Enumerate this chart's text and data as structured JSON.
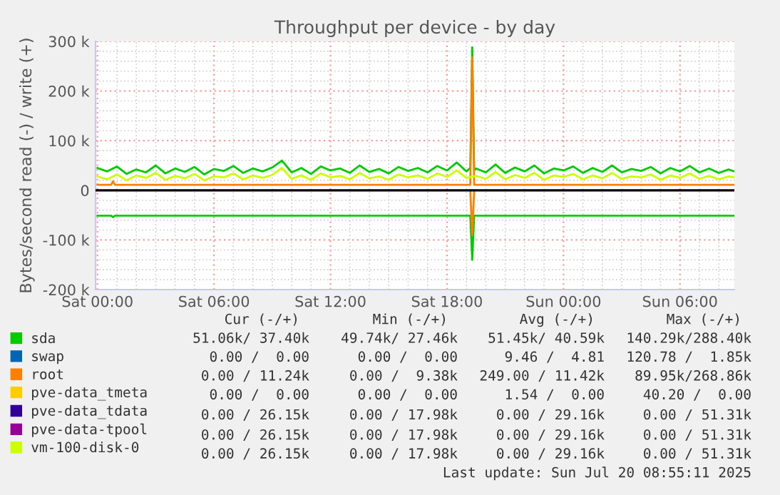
{
  "chart_data": {
    "type": "line",
    "title": "Throughput per device - by day",
    "ylabel": "Bytes/second read (-) / write (+)",
    "xlim": [
      "2025-07-18T23:54",
      "2025-07-20T08:48"
    ],
    "ylim": [
      -200000,
      300000
    ],
    "xticks": [
      {
        "value": "2025-07-19T00:00",
        "label": "Sat 00:00"
      },
      {
        "value": "2025-07-19T06:00",
        "label": "Sat 06:00"
      },
      {
        "value": "2025-07-19T12:00",
        "label": "Sat 12:00"
      },
      {
        "value": "2025-07-19T18:00",
        "label": "Sat 18:00"
      },
      {
        "value": "2025-07-20T00:00",
        "label": "Sun 00:00"
      },
      {
        "value": "2025-07-20T06:00",
        "label": "Sun 06:00"
      }
    ],
    "yticks": [
      {
        "value": -200000,
        "label": "-200 k"
      },
      {
        "value": -100000,
        "label": "-100 k"
      },
      0,
      {
        "value": 100000,
        "label": "100 k"
      },
      {
        "value": 200000,
        "label": "200 k"
      },
      {
        "value": 300000,
        "label": "300 k"
      }
    ],
    "grid": true,
    "legend": "bottom",
    "marker": "none",
    "line_style": "solid",
    "ref_lines": [
      {
        "axis": "y",
        "value": 0,
        "color": "#000000"
      }
    ],
    "series": [
      {
        "name": "sda",
        "color": "#00cc00",
        "x": [
          "2025-07-19T00:00",
          "2025-07-19T00:30",
          "2025-07-19T01:00",
          "2025-07-19T01:30",
          "2025-07-19T02:00",
          "2025-07-19T02:30",
          "2025-07-19T03:00",
          "2025-07-19T03:30",
          "2025-07-19T04:00",
          "2025-07-19T04:30",
          "2025-07-19T05:00",
          "2025-07-19T05:30",
          "2025-07-19T06:00",
          "2025-07-19T06:30",
          "2025-07-19T07:00",
          "2025-07-19T07:30",
          "2025-07-19T08:00",
          "2025-07-19T08:30",
          "2025-07-19T09:00",
          "2025-07-19T09:30",
          "2025-07-19T10:00",
          "2025-07-19T10:30",
          "2025-07-19T11:00",
          "2025-07-19T11:30",
          "2025-07-19T12:00",
          "2025-07-19T12:30",
          "2025-07-19T13:00",
          "2025-07-19T13:30",
          "2025-07-19T14:00",
          "2025-07-19T14:30",
          "2025-07-19T15:00",
          "2025-07-19T15:30",
          "2025-07-19T16:00",
          "2025-07-19T16:30",
          "2025-07-19T17:00",
          "2025-07-19T17:30",
          "2025-07-19T18:00",
          "2025-07-19T18:30",
          "2025-07-19T19:00",
          "2025-07-19T19:12",
          "2025-07-19T19:18",
          "2025-07-19T19:24",
          "2025-07-19T19:30",
          "2025-07-19T20:00",
          "2025-07-19T20:30",
          "2025-07-19T21:00",
          "2025-07-19T21:30",
          "2025-07-19T22:00",
          "2025-07-19T22:30",
          "2025-07-19T23:00",
          "2025-07-19T23:30",
          "2025-07-20T00:00",
          "2025-07-20T00:30",
          "2025-07-20T01:00",
          "2025-07-20T01:30",
          "2025-07-20T02:00",
          "2025-07-20T02:30",
          "2025-07-20T03:00",
          "2025-07-20T03:30",
          "2025-07-20T04:00",
          "2025-07-20T04:30",
          "2025-07-20T05:00",
          "2025-07-20T05:30",
          "2025-07-20T06:00",
          "2025-07-20T06:30",
          "2025-07-20T07:00",
          "2025-07-20T07:30",
          "2025-07-20T08:00",
          "2025-07-20T08:30",
          "2025-07-20T08:48"
        ],
        "values": [
          45000,
          38000,
          48000,
          33000,
          42000,
          36000,
          50000,
          34000,
          44000,
          37000,
          47000,
          32000,
          43000,
          39000,
          49000,
          35000,
          44000,
          38000,
          46000,
          60000,
          36000,
          45000,
          33000,
          48000,
          40000,
          44000,
          35000,
          50000,
          37000,
          43000,
          34000,
          47000,
          39000,
          45000,
          36000,
          49000,
          40000,
          56000,
          38000,
          45000,
          288000,
          40000,
          44000,
          36000,
          52000,
          35000,
          46000,
          38000,
          50000,
          34000,
          44000,
          40000,
          48000,
          35000,
          45000,
          37000,
          50000,
          36000,
          43000,
          39000,
          47000,
          34000,
          45000,
          38000,
          49000,
          36000,
          44000,
          35000,
          42000,
          38000
        ]
      },
      {
        "name": "swap",
        "color": "#0066b3"
      },
      {
        "name": "root",
        "color": "#ff8000",
        "x": [
          "2025-07-19T00:00",
          "2025-07-19T00:42",
          "2025-07-19T00:48",
          "2025-07-19T00:54",
          "2025-07-19T19:12",
          "2025-07-19T19:18",
          "2025-07-19T19:24",
          "2025-07-20T08:48"
        ],
        "values": [
          11000,
          11000,
          18000,
          11000,
          11000,
          268000,
          11000,
          11000
        ]
      },
      {
        "name": "pve-data_tmeta",
        "color": "#ffcc00"
      },
      {
        "name": "pve-data_tdata",
        "color": "#330099"
      },
      {
        "name": "pve-data-tpool",
        "color": "#990099"
      },
      {
        "name": "vm-100-disk-0",
        "color": "#ccff00",
        "x": [
          "2025-07-19T00:00",
          "2025-07-19T00:30",
          "2025-07-19T01:00",
          "2025-07-19T01:30",
          "2025-07-19T02:00",
          "2025-07-19T02:30",
          "2025-07-19T03:00",
          "2025-07-19T03:30",
          "2025-07-19T04:00",
          "2025-07-19T04:30",
          "2025-07-19T05:00",
          "2025-07-19T05:30",
          "2025-07-19T06:00",
          "2025-07-19T06:30",
          "2025-07-19T07:00",
          "2025-07-19T07:30",
          "2025-07-19T08:00",
          "2025-07-19T08:30",
          "2025-07-19T09:00",
          "2025-07-19T09:30",
          "2025-07-19T10:00",
          "2025-07-19T10:30",
          "2025-07-19T11:00",
          "2025-07-19T11:30",
          "2025-07-19T12:00",
          "2025-07-19T12:30",
          "2025-07-19T13:00",
          "2025-07-19T13:30",
          "2025-07-19T14:00",
          "2025-07-19T14:30",
          "2025-07-19T15:00",
          "2025-07-19T15:30",
          "2025-07-19T16:00",
          "2025-07-19T16:30",
          "2025-07-19T17:00",
          "2025-07-19T17:30",
          "2025-07-19T18:00",
          "2025-07-19T18:30",
          "2025-07-19T19:00",
          "2025-07-19T19:30",
          "2025-07-19T20:00",
          "2025-07-19T20:30",
          "2025-07-19T21:00",
          "2025-07-19T21:30",
          "2025-07-19T22:00",
          "2025-07-19T22:30",
          "2025-07-19T23:00",
          "2025-07-19T23:30",
          "2025-07-20T00:00",
          "2025-07-20T00:30",
          "2025-07-20T01:00",
          "2025-07-20T01:30",
          "2025-07-20T02:00",
          "2025-07-20T02:30",
          "2025-07-20T03:00",
          "2025-07-20T03:30",
          "2025-07-20T04:00",
          "2025-07-20T04:30",
          "2025-07-20T05:00",
          "2025-07-20T05:30",
          "2025-07-20T06:00",
          "2025-07-20T06:30",
          "2025-07-20T07:00",
          "2025-07-20T07:30",
          "2025-07-20T08:00",
          "2025-07-20T08:30",
          "2025-07-20T08:48"
        ],
        "values": [
          28000,
          22000,
          32000,
          20000,
          30000,
          25000,
          35000,
          21000,
          29000,
          24000,
          33000,
          20000,
          28000,
          26000,
          34000,
          22000,
          30000,
          25000,
          31000,
          45000,
          23000,
          30000,
          21000,
          34000,
          26000,
          29000,
          22000,
          35000,
          24000,
          28000,
          21000,
          32000,
          26000,
          30000,
          23000,
          34000,
          27000,
          40000,
          25000,
          29000,
          23000,
          37000,
          22000,
          31000,
          25000,
          35000,
          21000,
          30000,
          27000,
          33000,
          22000,
          30000,
          24000,
          35000,
          23000,
          28000,
          26000,
          32000,
          21000,
          30000,
          25000,
          34000,
          23000,
          29000,
          22000,
          28000,
          26000
        ]
      },
      {
        "color": "#00cc00",
        "x": [
          "2025-07-19T00:00",
          "2025-07-19T00:42",
          "2025-07-19T00:48",
          "2025-07-19T00:54",
          "2025-07-19T19:12",
          "2025-07-19T19:18",
          "2025-07-19T19:24",
          "2025-07-20T08:48"
        ],
        "values": [
          -51000,
          -51000,
          -54000,
          -51000,
          -51000,
          -140000,
          -51000,
          -51000
        ]
      },
      {
        "color": "#ff8000",
        "x": [
          "2025-07-19T19:12",
          "2025-07-19T19:18",
          "2025-07-19T19:24"
        ],
        "values": [
          0,
          -90000,
          0
        ]
      }
    ],
    "annotations": [
      "Cur (-/+)",
      "Min (-/+)",
      "Avg (-/+)",
      "Max (-/+)",
      "51.06k/ 37.40k",
      "49.74k/ 27.46k",
      "51.45k/ 40.59k",
      "140.29k/288.40k",
      "0.00 /  0.00",
      "0.00 /  0.00",
      "9.46 /  4.81",
      "120.78 /  1.85k",
      "0.00 / 11.24k",
      "0.00 /  9.38k",
      "249.00 / 11.42k",
      "89.95k/268.86k",
      "0.00 /  0.00",
      "0.00 /  0.00",
      "1.54 /  0.00",
      "40.20 /  0.00",
      "0.00 / 26.15k",
      "0.00 / 17.98k",
      "0.00 / 29.16k",
      "0.00 / 51.31k",
      "0.00 / 26.15k",
      "0.00 / 17.98k",
      "0.00 / 29.16k",
      "0.00 / 51.31k",
      "0.00 / 26.15k",
      "0.00 / 17.98k",
      "0.00 / 29.16k",
      "0.00 / 51.31k",
      "Last update: Sun Jul 20 08:55:11 2025"
    ]
  }
}
